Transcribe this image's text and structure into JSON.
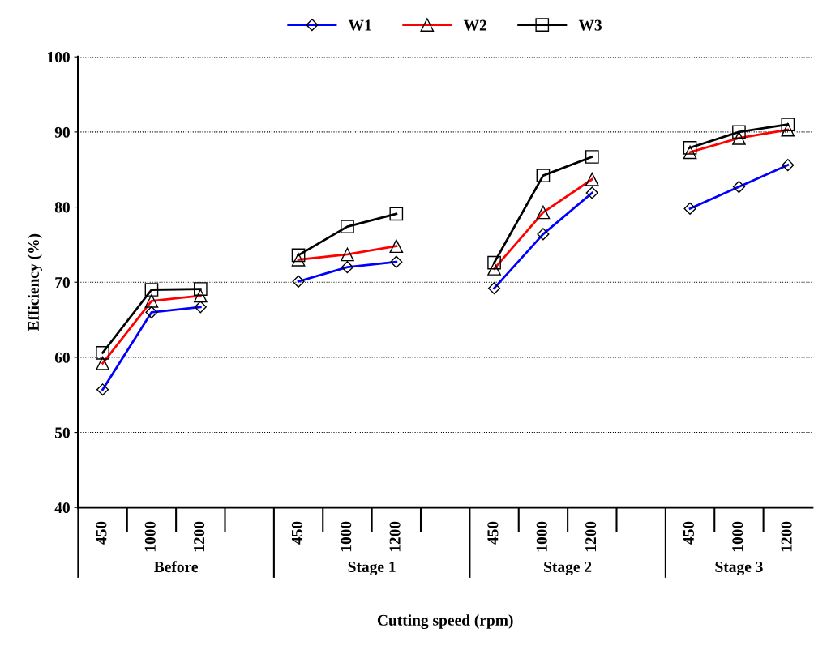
{
  "chart_data": {
    "type": "line",
    "xlabel": "Cutting speed (rpm)",
    "ylabel": "Efficiency (%)",
    "categories": [
      "450",
      "1000",
      "1200",
      null,
      "450",
      "1000",
      "1200",
      null,
      "450",
      "1000",
      "1200",
      null,
      "450",
      "1000",
      "1200"
    ],
    "series": [
      {
        "name": "W1",
        "color": "#0000ff",
        "marker": "diamond",
        "values": [
          55.7,
          66.0,
          66.7,
          null,
          70.1,
          72.0,
          72.7,
          null,
          69.2,
          76.4,
          81.9,
          null,
          79.8,
          82.7,
          85.6
        ]
      },
      {
        "name": "W2",
        "color": "#ff0000",
        "marker": "triangle",
        "values": [
          59.2,
          67.5,
          68.2,
          null,
          73.0,
          73.7,
          74.8,
          null,
          71.8,
          79.3,
          83.7,
          null,
          87.3,
          89.2,
          90.3
        ]
      },
      {
        "name": "W3",
        "color": "#000000",
        "marker": "square",
        "values": [
          60.6,
          69.0,
          69.1,
          null,
          73.6,
          77.4,
          79.1,
          null,
          72.6,
          84.2,
          86.7,
          null,
          87.9,
          90.0,
          91.0
        ]
      }
    ],
    "annotations": [
      "Before",
      "Stage 1",
      "Stage 2",
      "Stage 3"
    ],
    "ylim": [
      40,
      100
    ],
    "yticks": [
      40,
      50,
      60,
      70,
      80,
      90,
      100
    ],
    "grid": "y",
    "legend": "top",
    "line_style": "solid"
  }
}
